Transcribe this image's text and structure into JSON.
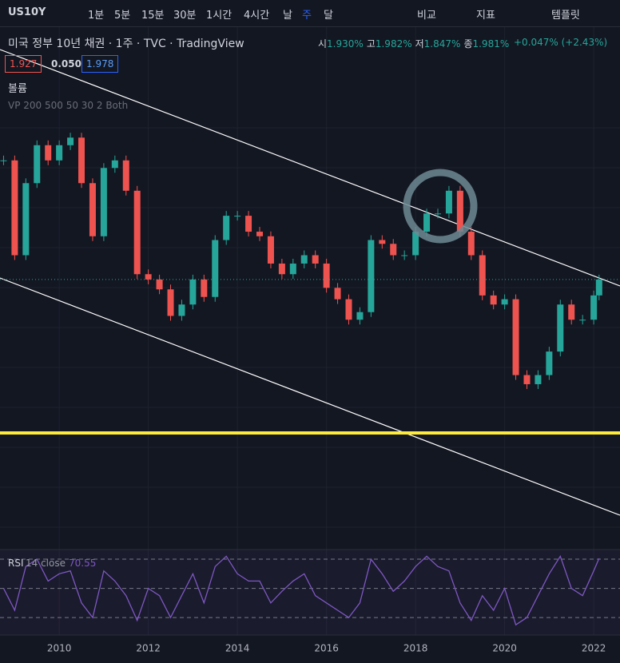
{
  "toolbar": {
    "symbol": "US10Y",
    "intervals": [
      "1분",
      "5분",
      "15분",
      "30분",
      "1시간",
      "4시간",
      "날",
      "주",
      "달"
    ],
    "compare": "비교",
    "indicators": "지표",
    "templates": "템플릿"
  },
  "legend": {
    "title": "미국 정부 10년 채권 · 1주 · TVC · TradingView",
    "ohlc": [
      [
        "시",
        "1.930%"
      ],
      [
        "고",
        "1.982%"
      ],
      [
        "저",
        "1.847%"
      ],
      [
        "종",
        "1.981%"
      ]
    ],
    "change": "+0.047% (+2.43%)",
    "bid": "1.927",
    "spread": "0.050",
    "ask": "1.978",
    "volume": "볼륨",
    "vp": "VP 200 500 50 30 2 Both",
    "rsi_name": "RSI",
    "rsi_params": "14 close"
  },
  "chart_data": [
    {
      "type": "candlestick",
      "x": [
        2008.75,
        2009,
        2009.25,
        2009.5,
        2009.75,
        2010,
        2010.25,
        2010.5,
        2010.75,
        2011,
        2011.25,
        2011.5,
        2011.75,
        2012,
        2012.25,
        2012.5,
        2012.75,
        2013,
        2013.25,
        2013.5,
        2013.75,
        2014,
        2014.25,
        2014.5,
        2014.75,
        2015,
        2015.25,
        2015.5,
        2015.75,
        2016,
        2016.25,
        2016.5,
        2016.75,
        2017,
        2017.25,
        2017.5,
        2017.75,
        2018,
        2018.25,
        2018.5,
        2018.75,
        2019,
        2019.25,
        2019.5,
        2019.75,
        2020,
        2020.25,
        2020.5,
        2020.75,
        2021,
        2021.25,
        2021.5,
        2021.75,
        2022,
        2022.12
      ],
      "values": [
        3.5,
        2.25,
        3.2,
        3.7,
        3.5,
        3.7,
        3.8,
        3.2,
        2.5,
        3.4,
        3.5,
        3.1,
        2.0,
        1.93,
        1.8,
        1.45,
        1.6,
        1.93,
        1.7,
        2.45,
        2.77,
        2.77,
        2.56,
        2.5,
        2.14,
        2.0,
        2.14,
        2.25,
        2.14,
        1.82,
        1.67,
        1.4,
        1.5,
        2.45,
        2.4,
        2.25,
        2.25,
        2.56,
        2.8,
        2.8,
        3.1,
        2.56,
        2.25,
        1.72,
        1.6,
        1.67,
        0.67,
        0.55,
        0.67,
        0.98,
        1.6,
        1.4,
        1.4,
        1.72,
        1.93
      ],
      "up_color": "#26a69a",
      "down_color": "#ef5350",
      "xlim": [
        2008.67,
        2022.59
      ],
      "ylim": [
        -1.63,
        4.14
      ],
      "xticks": [
        2010,
        2012,
        2014,
        2016,
        2018,
        2020,
        2022
      ]
    },
    {
      "type": "line",
      "x": [
        2008.75,
        2009,
        2009.25,
        2009.5,
        2009.75,
        2010,
        2010.25,
        2010.5,
        2010.75,
        2011,
        2011.25,
        2011.5,
        2011.75,
        2012,
        2012.25,
        2012.5,
        2012.75,
        2013,
        2013.25,
        2013.5,
        2013.75,
        2014,
        2014.25,
        2014.5,
        2014.75,
        2015,
        2015.25,
        2015.5,
        2015.75,
        2016,
        2016.25,
        2016.5,
        2016.75,
        2017,
        2017.25,
        2017.5,
        2017.75,
        2018,
        2018.25,
        2018.5,
        2018.75,
        2019,
        2019.25,
        2019.5,
        2019.75,
        2020,
        2020.25,
        2020.5,
        2020.75,
        2021,
        2021.25,
        2021.5,
        2021.75,
        2022,
        2022.12
      ],
      "values": [
        50,
        35,
        65,
        70,
        55,
        60,
        62,
        40,
        30,
        62,
        55,
        45,
        28,
        50,
        45,
        30,
        45,
        60,
        40,
        65,
        72,
        60,
        55,
        55,
        40,
        48,
        55,
        60,
        45,
        40,
        35,
        30,
        40,
        70,
        60,
        48,
        55,
        65,
        72,
        65,
        62,
        40,
        28,
        45,
        35,
        50,
        25,
        30,
        45,
        60,
        72,
        50,
        45,
        62,
        70.55
      ],
      "color": "#7e57c2",
      "xlim": [
        2008.67,
        2022.59
      ],
      "ylim": [
        18,
        76.6
      ],
      "levels": [
        70,
        50,
        30
      ]
    }
  ]
}
